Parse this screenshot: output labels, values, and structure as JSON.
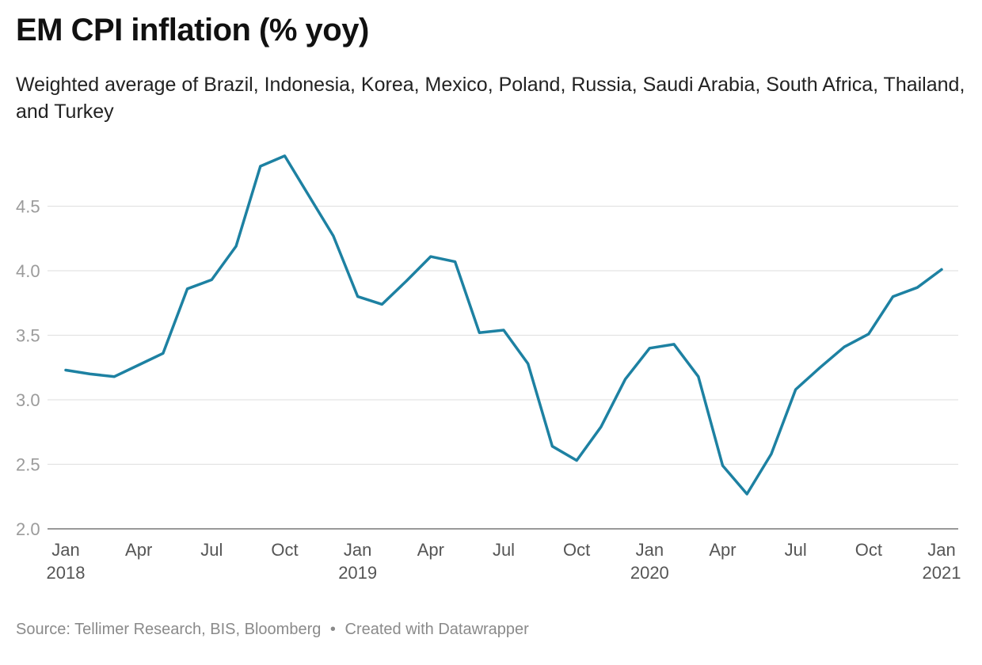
{
  "title": "EM CPI inflation (% yoy)",
  "subtitle": "Weighted average of Brazil, Indonesia, Korea, Mexico, Poland, Russia, Saudi Arabia, South Africa, Thailand, and Turkey",
  "footer": {
    "source": "Source: Tellimer Research, BIS, Bloomberg",
    "separator": "•",
    "credit": "Created with Datawrapper"
  },
  "chart_data": {
    "type": "line",
    "title": "EM CPI inflation (% yoy)",
    "subtitle": "Weighted average of Brazil, Indonesia, Korea, Mexico, Poland, Russia, Saudi Arabia, South Africa, Thailand, and Turkey",
    "xlabel": "",
    "ylabel": "",
    "ylim": [
      2.0,
      4.9
    ],
    "yticks": [
      2.0,
      2.5,
      3.0,
      3.5,
      4.0,
      4.5
    ],
    "grid": true,
    "line_color": "#1d81a2",
    "x_ticks": [
      {
        "month": "Jan",
        "year": "2018"
      },
      {
        "month": "Apr",
        "year": ""
      },
      {
        "month": "Jul",
        "year": ""
      },
      {
        "month": "Oct",
        "year": ""
      },
      {
        "month": "Jan",
        "year": "2019"
      },
      {
        "month": "Apr",
        "year": ""
      },
      {
        "month": "Jul",
        "year": ""
      },
      {
        "month": "Oct",
        "year": ""
      },
      {
        "month": "Jan",
        "year": "2020"
      },
      {
        "month": "Apr",
        "year": ""
      },
      {
        "month": "Jul",
        "year": ""
      },
      {
        "month": "Oct",
        "year": ""
      },
      {
        "month": "Jan",
        "year": "2021"
      }
    ],
    "x": [
      "2018-01",
      "2018-02",
      "2018-03",
      "2018-04",
      "2018-05",
      "2018-06",
      "2018-07",
      "2018-08",
      "2018-09",
      "2018-10",
      "2018-11",
      "2018-12",
      "2019-01",
      "2019-02",
      "2019-03",
      "2019-04",
      "2019-05",
      "2019-06",
      "2019-07",
      "2019-08",
      "2019-09",
      "2019-10",
      "2019-11",
      "2019-12",
      "2020-01",
      "2020-02",
      "2020-03",
      "2020-04",
      "2020-05",
      "2020-06",
      "2020-07",
      "2020-08",
      "2020-09",
      "2020-10",
      "2020-11",
      "2020-12",
      "2021-01"
    ],
    "series": [
      {
        "values": [
          3.23,
          3.2,
          3.18,
          3.27,
          3.36,
          3.86,
          3.93,
          4.19,
          4.81,
          4.89,
          4.58,
          4.27,
          3.8,
          3.74,
          3.92,
          4.11,
          4.07,
          3.52,
          3.54,
          3.28,
          2.64,
          2.53,
          2.79,
          3.16,
          3.4,
          3.43,
          3.18,
          2.49,
          2.27,
          2.58,
          3.08,
          3.25,
          3.41,
          3.51,
          3.8,
          3.87,
          4.01
        ]
      }
    ]
  }
}
